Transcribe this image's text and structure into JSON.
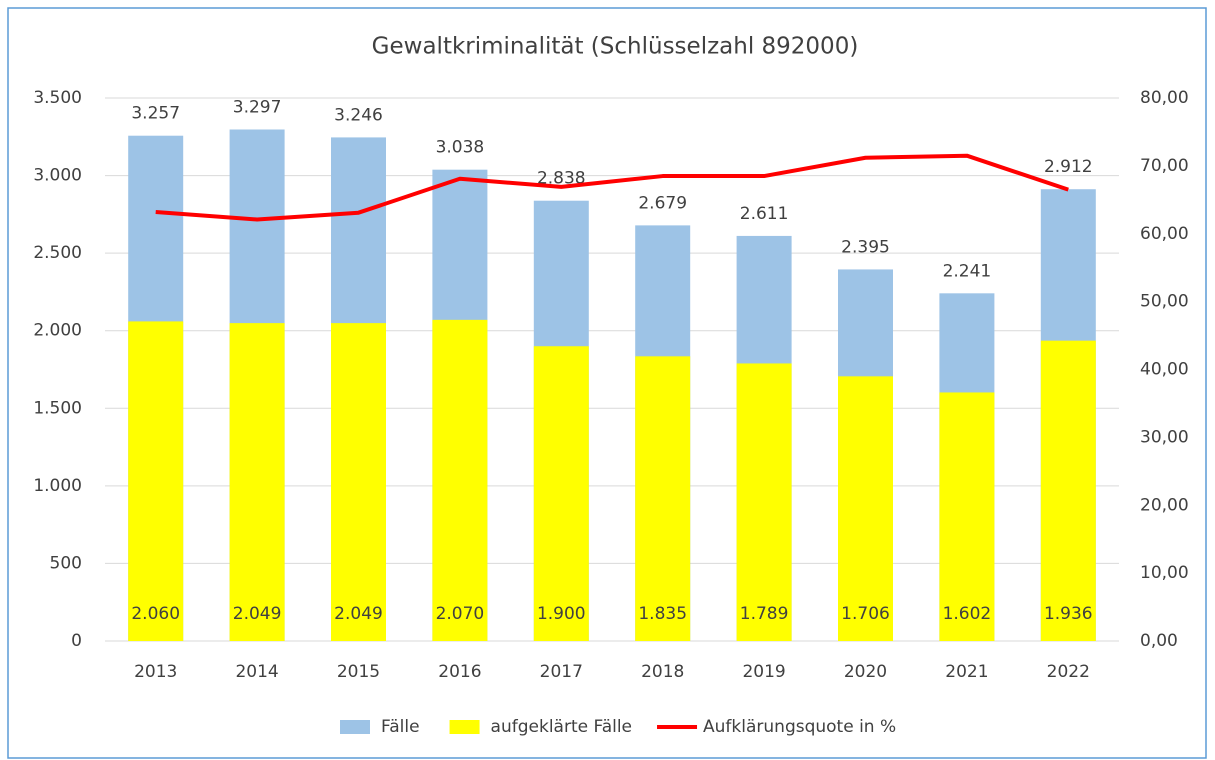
{
  "chart_data": {
    "type": "bar",
    "title": "Gewaltkriminalität (Schlüsselzahl 892000)",
    "categories": [
      "2013",
      "2014",
      "2015",
      "2016",
      "2017",
      "2018",
      "2019",
      "2020",
      "2021",
      "2022"
    ],
    "series": [
      {
        "name": "Fälle",
        "color": "#9dc3e6",
        "values": [
          3257,
          3297,
          3246,
          3038,
          2838,
          2679,
          2611,
          2395,
          2241,
          2912
        ],
        "value_labels": [
          "3.257",
          "3.297",
          "3.246",
          "3.038",
          "2.838",
          "2.679",
          "2.611",
          "2.395",
          "2.241",
          "2.912"
        ]
      },
      {
        "name": "aufgeklärte Fälle",
        "color": "#ffff00",
        "values": [
          2060,
          2049,
          2049,
          2070,
          1900,
          1835,
          1789,
          1706,
          1602,
          1936
        ],
        "value_labels": [
          "2.060",
          "2.049",
          "2.049",
          "2.070",
          "1.900",
          "1.835",
          "1.789",
          "1.706",
          "1.602",
          "1.936"
        ]
      },
      {
        "name": "Aufklärungsquote in %",
        "color": "#ff0000",
        "type": "line",
        "axis": "y2",
        "values": [
          63.2,
          62.1,
          63.1,
          68.1,
          66.9,
          68.5,
          68.5,
          71.2,
          71.5,
          66.5
        ]
      }
    ],
    "ylim": [
      0,
      3500
    ],
    "yticks": [
      0,
      500,
      {
        "value": 1000,
        "label": "1.000"
      },
      {
        "value": 1500,
        "label": "1.500"
      },
      {
        "value": 2000,
        "label": "2.000"
      },
      {
        "value": 2500,
        "label": "2.500"
      },
      {
        "value": 3000,
        "label": "3.000"
      },
      {
        "value": 3500,
        "label": "3.500"
      }
    ],
    "y2lim": [
      0,
      80
    ],
    "y2ticks": [
      {
        "value": 0,
        "label": "0,00"
      },
      {
        "value": 10,
        "label": "10,00"
      },
      {
        "value": 20,
        "label": "20,00"
      },
      {
        "value": 30,
        "label": "30,00"
      },
      {
        "value": 40,
        "label": "40,00"
      },
      {
        "value": 50,
        "label": "50,00"
      },
      {
        "value": 60,
        "label": "60,00"
      },
      {
        "value": 70,
        "label": "70,00"
      },
      {
        "value": 80,
        "label": "80,00"
      }
    ],
    "grid": true,
    "legend": "bottom"
  }
}
